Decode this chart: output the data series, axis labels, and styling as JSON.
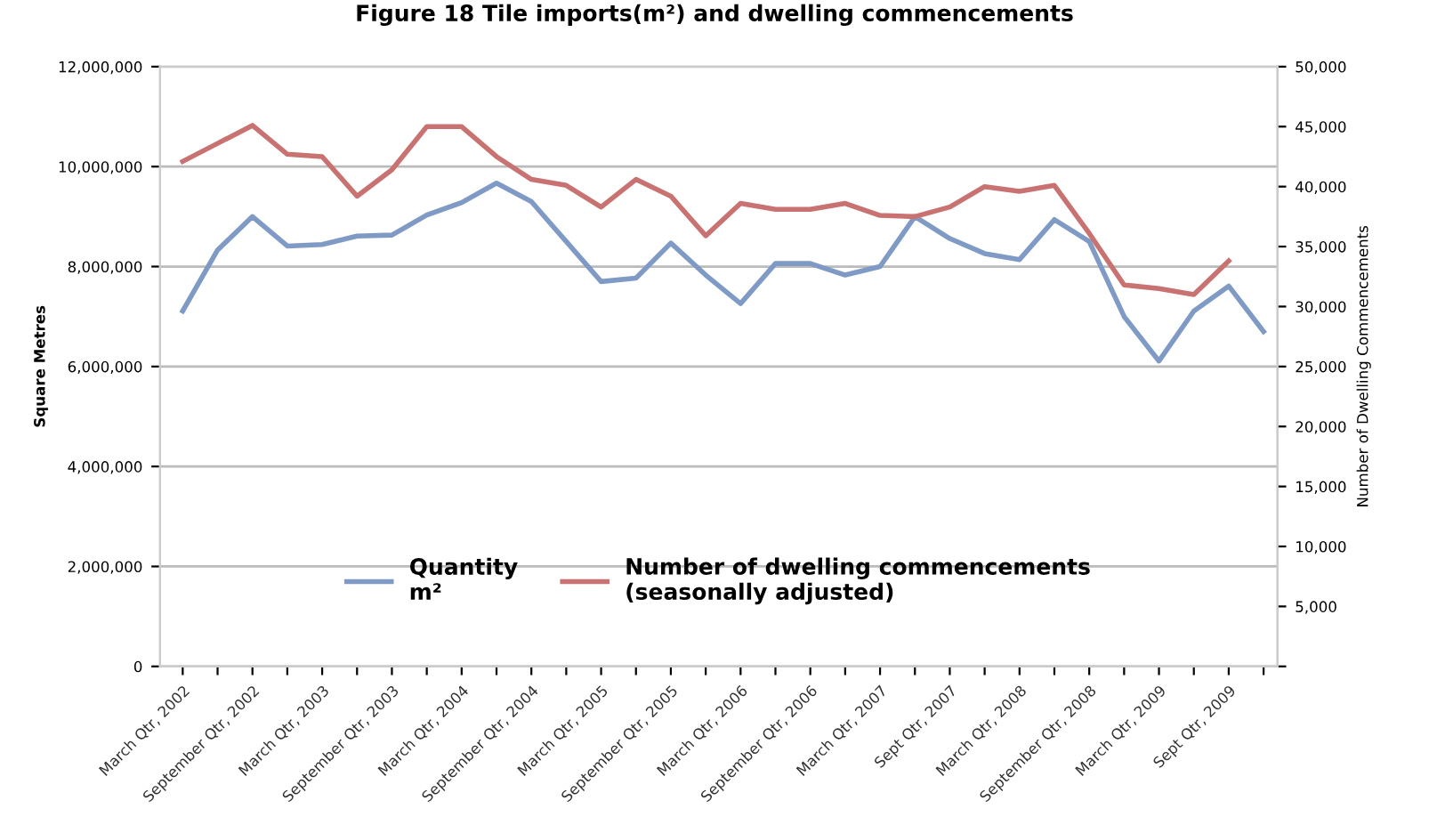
{
  "chart_data": {
    "type": "line",
    "title": "Figure 18 Tile imports(m²) and dwelling commencements",
    "ylabel": "Square Metres",
    "y2label": "Number of Dwelling Commencements",
    "categories": [
      "March Qtr, 2002",
      null,
      "September Qtr, 2002",
      null,
      "March Qtr, 2003",
      null,
      "September Qtr, 2003",
      null,
      "March Qtr, 2004",
      null,
      "September Qtr, 2004",
      null,
      "March Qtr, 2005",
      null,
      "September Qtr, 2005",
      null,
      "March Qtr, 2006",
      null,
      "September Qtr, 2006",
      null,
      "March Qtr, 2007",
      null,
      "Sept Qtr, 2007",
      null,
      "March Qtr, 2008",
      null,
      "September Qtr, 2008",
      null,
      "March Qtr, 2009",
      null,
      "Sept Qtr, 2009",
      null
    ],
    "series": [
      {
        "name": "Quantity\nm²",
        "color": "#7f9ac4",
        "values": [
          7110000,
          8330000,
          9000000,
          8410000,
          8440000,
          8610000,
          8630000,
          9030000,
          9280000,
          9670000,
          9300000,
          8500000,
          7700000,
          7770000,
          8470000,
          7830000,
          7260000,
          8060000,
          8060000,
          7830000,
          8000000,
          9000000,
          8560000,
          8260000,
          8140000,
          8940000,
          8500000,
          7000000,
          6110000,
          7110000,
          7610000,
          6700000
        ]
      },
      {
        "name": "Number of dwelling commencements\n(seasonally adjusted)",
        "color": "#c87272",
        "axis": "y2",
        "values": [
          42100,
          43600,
          45100,
          42700,
          42500,
          39200,
          41400,
          45000,
          45000,
          42500,
          40600,
          40100,
          38300,
          40600,
          39200,
          35900,
          38600,
          38100,
          38100,
          38600,
          37600,
          37500,
          38300,
          40000,
          39600,
          40100,
          36100,
          31800,
          31500,
          31000,
          33800,
          null
        ]
      }
    ],
    "ylim": [
      0,
      12000000
    ],
    "yticks": [
      {
        "value": 0,
        "label": "0"
      },
      {
        "value": 2000000,
        "label": "2,000,000"
      },
      {
        "value": 4000000,
        "label": "4,000,000"
      },
      {
        "value": 6000000,
        "label": "6,000,000"
      },
      {
        "value": 8000000,
        "label": "8,000,000"
      },
      {
        "value": 10000000,
        "label": "10,000,000"
      },
      {
        "value": 12000000,
        "label": "12,000,000"
      }
    ],
    "y2lim": [
      0,
      50000
    ],
    "y2ticks": [
      {
        "value": 0,
        "label": null
      },
      {
        "value": 5000,
        "label": "5,000"
      },
      {
        "value": 10000,
        "label": "10,000"
      },
      {
        "value": 15000,
        "label": "15,000"
      },
      {
        "value": 20000,
        "label": "20,000"
      },
      {
        "value": 25000,
        "label": "25,000"
      },
      {
        "value": 30000,
        "label": "30,000"
      },
      {
        "value": 35000,
        "label": "35,000"
      },
      {
        "value": 40000,
        "label": "40,000"
      },
      {
        "value": 45000,
        "label": "45,000"
      },
      {
        "value": 50000,
        "label": "50,000"
      }
    ],
    "grid": "y",
    "legend": "bottom",
    "marker": "none",
    "line_style": "solid"
  }
}
